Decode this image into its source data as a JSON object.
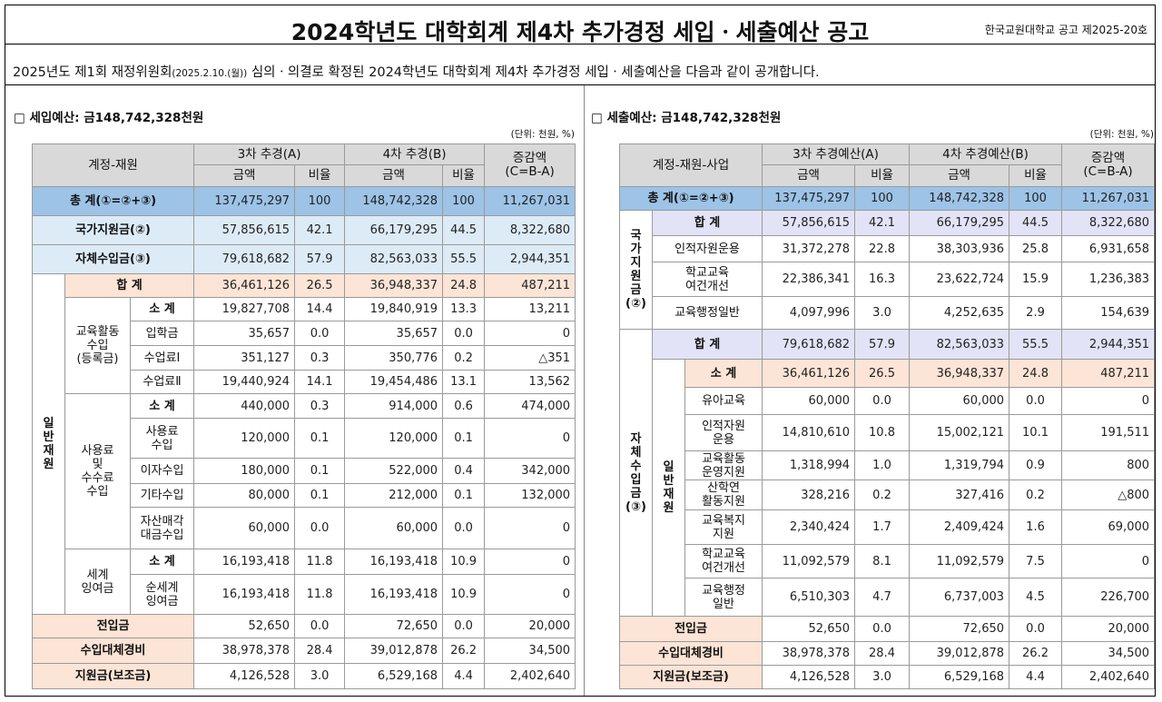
{
  "header": {
    "title": "2024학년도 대학회계 제4차 추가경정 세입ㆍ세출예산 공고",
    "org": "한국교원대학교 공고 제2025-20호",
    "notice": {
      "before": "2025년도 제1회 재정위원회",
      "date": "(2025.2.10.(월))",
      "after": " 심의ㆍ의결로 확정된 2024학년도 대학회계 제4차 추가경정 세입ㆍ세출예산을 다음과 같이 공개합니다."
    }
  },
  "revenue": {
    "heading": "□ 세입예산: 금148,742,328천원",
    "unit": "(단위: 천원, %)",
    "head": {
      "account": "계정-재원",
      "a": "3차 추경(A)",
      "b": "4차 추경(B)",
      "diff": "증감액\n(C=B-A)",
      "amount": "금액",
      "ratio": "비율"
    },
    "rows": [
      {
        "labels": [
          "총 계(①=②+③)"
        ],
        "values": [
          "137,475,297",
          "100",
          "148,742,328",
          "100",
          "11,267,031"
        ]
      },
      {
        "labels": [
          "국가지원금(②)"
        ],
        "values": [
          "57,856,615",
          "42.1",
          "66,179,295",
          "44.5",
          "8,322,680"
        ]
      },
      {
        "labels": [
          "자체수입금(③)"
        ],
        "values": [
          "79,618,682",
          "57.9",
          "82,563,033",
          "55.5",
          "2,944,351"
        ]
      },
      {
        "labels": [
          "일\n반\n재\n원",
          "합 계"
        ],
        "values": [
          "36,461,126",
          "26.5",
          "36,948,337",
          "24.8",
          "487,211"
        ]
      },
      {
        "labels": [
          "교육활동\n수입\n(등록금)",
          "소 계"
        ],
        "values": [
          "19,827,708",
          "14.4",
          "19,840,919",
          "13.3",
          "13,211"
        ]
      },
      {
        "labels": [
          "입학금"
        ],
        "values": [
          "35,657",
          "0.0",
          "35,657",
          "0.0",
          "0"
        ]
      },
      {
        "labels": [
          "수업료Ⅰ"
        ],
        "values": [
          "351,127",
          "0.3",
          "350,776",
          "0.2",
          "△351"
        ]
      },
      {
        "labels": [
          "수업료Ⅱ"
        ],
        "values": [
          "19,440,924",
          "14.1",
          "19,454,486",
          "13.1",
          "13,562"
        ]
      },
      {
        "labels": [
          "사용료\n및\n수수료\n수입",
          "소 계"
        ],
        "values": [
          "440,000",
          "0.3",
          "914,000",
          "0.6",
          "474,000"
        ]
      },
      {
        "labels": [
          "사용료\n수입"
        ],
        "values": [
          "120,000",
          "0.1",
          "120,000",
          "0.1",
          "0"
        ]
      },
      {
        "labels": [
          "이자수입"
        ],
        "values": [
          "180,000",
          "0.1",
          "522,000",
          "0.4",
          "342,000"
        ]
      },
      {
        "labels": [
          "기타수입"
        ],
        "values": [
          "80,000",
          "0.1",
          "212,000",
          "0.1",
          "132,000"
        ]
      },
      {
        "labels": [
          "자산매각\n대금수입"
        ],
        "values": [
          "60,000",
          "0.0",
          "60,000",
          "0.0",
          "0"
        ]
      },
      {
        "labels": [
          "세계\n잉여금",
          "소 계"
        ],
        "values": [
          "16,193,418",
          "11.8",
          "16,193,418",
          "10.9",
          "0"
        ]
      },
      {
        "labels": [
          "순세계\n잉여금"
        ],
        "values": [
          "16,193,418",
          "11.8",
          "16,193,418",
          "10.9",
          "0"
        ]
      },
      {
        "labels": [
          "전입금"
        ],
        "values": [
          "52,650",
          "0.0",
          "72,650",
          "0.0",
          "20,000"
        ]
      },
      {
        "labels": [
          "수입대체경비"
        ],
        "values": [
          "38,978,378",
          "28.4",
          "39,012,878",
          "26.2",
          "34,500"
        ]
      },
      {
        "labels": [
          "지원금(보조금)"
        ],
        "values": [
          "4,126,528",
          "3.0",
          "6,529,168",
          "4.4",
          "2,402,640"
        ]
      }
    ]
  },
  "expenditure": {
    "heading": "□ 세출예산: 금148,742,328천원",
    "unit": "(단위: 천원, %)",
    "head": {
      "account": "계정-재원-사업",
      "a": "3차 추경예산(A)",
      "b": "4차 추경예산(B)",
      "diff": "증감액\n(C=B-A)",
      "amount": "금액",
      "ratio": "비율"
    },
    "rows": [
      {
        "labels": [
          "총 계(①=②+③)"
        ],
        "values": [
          "137,475,297",
          "100",
          "148,742,328",
          "100",
          "11,267,031"
        ]
      },
      {
        "labels": [
          "국\n가\n지\n원\n금\n(②)",
          "합 계"
        ],
        "values": [
          "57,856,615",
          "42.1",
          "66,179,295",
          "44.5",
          "8,322,680"
        ]
      },
      {
        "labels": [
          "인적자원운용"
        ],
        "values": [
          "31,372,278",
          "22.8",
          "38,303,936",
          "25.8",
          "6,931,658"
        ]
      },
      {
        "labels": [
          "학교교육\n여건개선"
        ],
        "values": [
          "22,386,341",
          "16.3",
          "23,622,724",
          "15.9",
          "1,236,383"
        ]
      },
      {
        "labels": [
          "교육행정일반"
        ],
        "values": [
          "4,097,996",
          "3.0",
          "4,252,635",
          "2.9",
          "154,639"
        ]
      },
      {
        "labels": [
          "자\n체\n수\n입\n금\n(③)",
          "합 계"
        ],
        "values": [
          "79,618,682",
          "57.9",
          "82,563,033",
          "55.5",
          "2,944,351"
        ]
      },
      {
        "labels": [
          "일\n반\n재\n원",
          "소 계"
        ],
        "values": [
          "36,461,126",
          "26.5",
          "36,948,337",
          "24.8",
          "487,211"
        ]
      },
      {
        "labels": [
          "유아교육"
        ],
        "values": [
          "60,000",
          "0.0",
          "60,000",
          "0.0",
          "0"
        ]
      },
      {
        "labels": [
          "인적자원\n운용"
        ],
        "values": [
          "14,810,610",
          "10.8",
          "15,002,121",
          "10.1",
          "191,511"
        ]
      },
      {
        "labels": [
          "교육활동\n운영지원"
        ],
        "values": [
          "1,318,994",
          "1.0",
          "1,319,794",
          "0.9",
          "800"
        ]
      },
      {
        "labels": [
          "산학연\n활동지원"
        ],
        "values": [
          "328,216",
          "0.2",
          "327,416",
          "0.2",
          "△800"
        ]
      },
      {
        "labels": [
          "교육복지\n지원"
        ],
        "values": [
          "2,340,424",
          "1.7",
          "2,409,424",
          "1.6",
          "69,000"
        ]
      },
      {
        "labels": [
          "학교교육\n여건개선"
        ],
        "values": [
          "11,092,579",
          "8.1",
          "11,092,579",
          "7.5",
          "0"
        ]
      },
      {
        "labels": [
          "교육행정\n일반"
        ],
        "values": [
          "6,510,303",
          "4.7",
          "6,737,003",
          "4.5",
          "226,700"
        ]
      },
      {
        "labels": [
          "전입금"
        ],
        "values": [
          "52,650",
          "0.0",
          "72,650",
          "0.0",
          "20,000"
        ]
      },
      {
        "labels": [
          "수입대체경비"
        ],
        "values": [
          "38,978,378",
          "28.4",
          "39,012,878",
          "26.2",
          "34,500"
        ]
      },
      {
        "labels": [
          "지원금(보조금)"
        ],
        "values": [
          "4,126,528",
          "3.0",
          "6,529,168",
          "4.4",
          "2,402,640"
        ]
      }
    ]
  }
}
